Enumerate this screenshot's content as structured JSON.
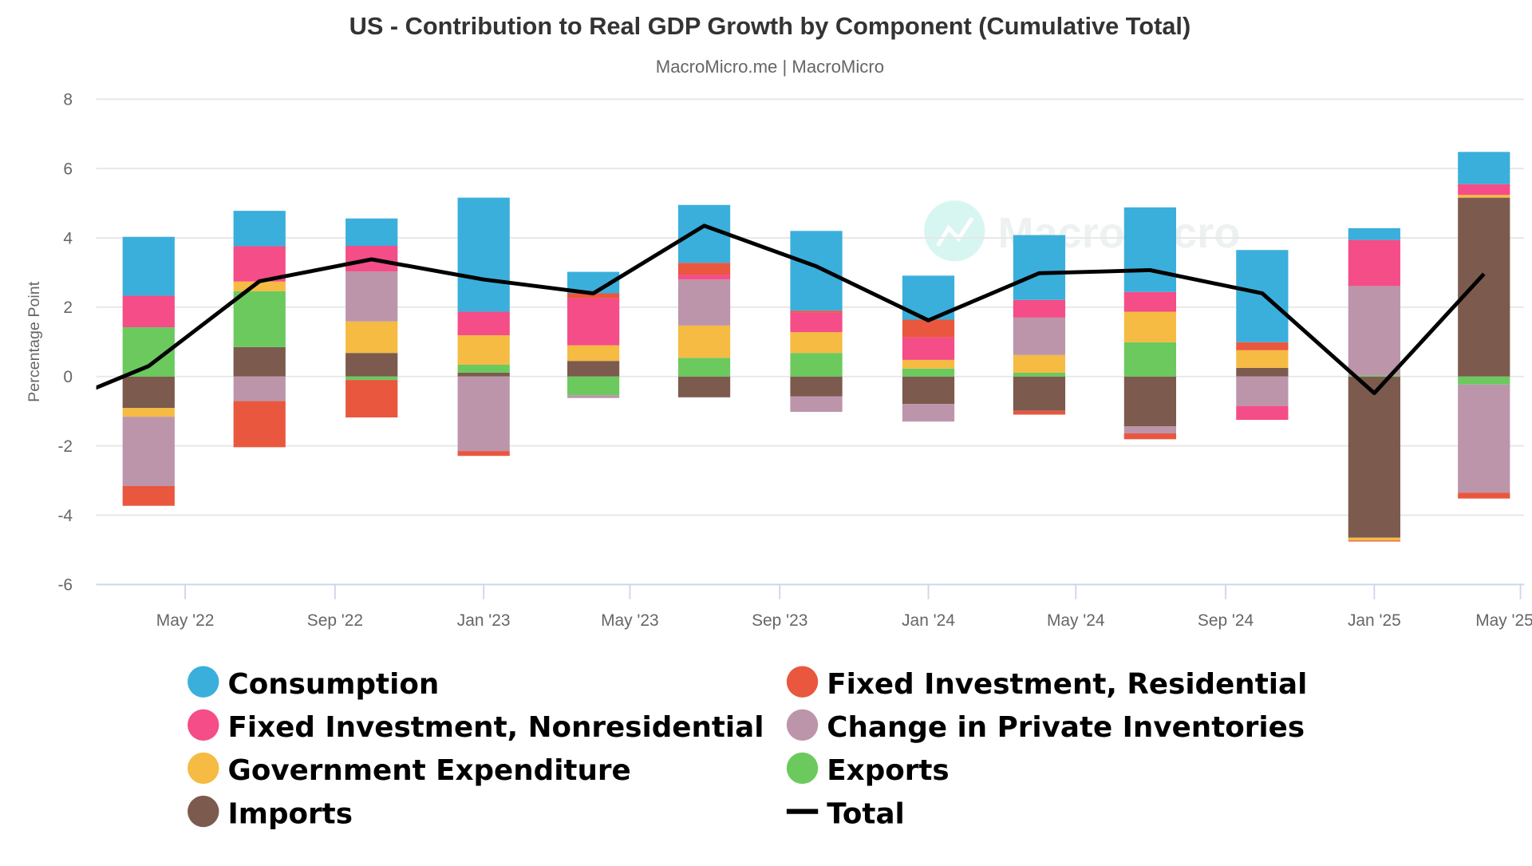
{
  "chart_data": {
    "type": "bar",
    "stacked": true,
    "title": "US - Contribution to Real GDP Growth by Component (Cumulative Total)",
    "subtitle": "MacroMicro.me | MacroMicro",
    "watermark": "MacroMicro",
    "ylabel": "Percentage Point",
    "ylim": [
      -6,
      8
    ],
    "yticks": [
      8,
      6,
      4,
      2,
      0,
      -2,
      -4,
      -6
    ],
    "xlim": [
      "2022-02-17",
      "2025-05-04"
    ],
    "xticks": [
      {
        "label": "May '22",
        "date": "2022-05-01"
      },
      {
        "label": "Sep '22",
        "date": "2022-09-01"
      },
      {
        "label": "Jan '23",
        "date": "2023-01-01"
      },
      {
        "label": "May '23",
        "date": "2023-05-01"
      },
      {
        "label": "Sep '23",
        "date": "2023-09-01"
      },
      {
        "label": "Jan '24",
        "date": "2024-01-01"
      },
      {
        "label": "May '24",
        "date": "2024-05-01"
      },
      {
        "label": "Sep '24",
        "date": "2024-09-01"
      },
      {
        "label": "Jan '25",
        "date": "2025-01-01"
      },
      {
        "label": "May '25",
        "date": "2025-05-01"
      }
    ],
    "grid": true,
    "legend_placement": "bottom",
    "x": [
      "2022-04-01",
      "2022-07-01",
      "2022-10-01",
      "2023-01-01",
      "2023-04-01",
      "2023-07-01",
      "2023-10-01",
      "2024-01-01",
      "2024-04-01",
      "2024-07-01",
      "2024-10-01",
      "2025-01-01",
      "2025-04-01"
    ],
    "series": [
      {
        "name": "Consumption",
        "color": "#3aafdb",
        "values": [
          1.7,
          1.02,
          0.79,
          3.29,
          0.62,
          1.67,
          2.3,
          1.27,
          1.87,
          2.44,
          2.66,
          0.34,
          0.93
        ]
      },
      {
        "name": "Fixed Investment, Residential",
        "color": "#e9573f",
        "values": [
          -0.57,
          -1.33,
          -1.08,
          -0.14,
          0.14,
          0.34,
          0.05,
          0.51,
          -0.11,
          -0.17,
          0.23,
          -0.03,
          -0.17
        ]
      },
      {
        "name": "Fixed Investment, Nonresidential",
        "color": "#f44d87",
        "values": [
          0.91,
          1.02,
          0.74,
          0.68,
          1.36,
          0.14,
          0.57,
          0.65,
          0.51,
          0.57,
          -0.4,
          1.33,
          0.31
        ]
      },
      {
        "name": "Change in Private Inventories",
        "color": "#bc95ab",
        "values": [
          -2.0,
          -0.71,
          1.44,
          -2.15,
          -0.08,
          1.33,
          -0.45,
          -0.51,
          1.08,
          -0.2,
          -0.85,
          2.58,
          -3.12
        ]
      },
      {
        "name": "Government Expenditure",
        "color": "#f5bb42",
        "values": [
          -0.25,
          0.28,
          0.91,
          0.85,
          0.45,
          0.93,
          0.6,
          0.25,
          0.51,
          0.88,
          0.51,
          -0.08,
          0.08
        ]
      },
      {
        "name": "Exports",
        "color": "#6cc95e",
        "values": [
          1.42,
          1.61,
          -0.1,
          0.23,
          -0.54,
          0.54,
          0.68,
          0.23,
          0.11,
          0.99,
          0.0,
          0.03,
          -0.23
        ]
      },
      {
        "name": "Imports",
        "color": "#7c5a4d",
        "values": [
          -0.91,
          0.85,
          0.68,
          0.11,
          0.45,
          -0.6,
          -0.57,
          -0.79,
          -0.99,
          -1.44,
          0.25,
          -4.65,
          5.16
        ]
      }
    ],
    "total": {
      "name": "Total",
      "type": "line",
      "color": "#000000",
      "x": [
        "2022-01-01",
        "2022-04-01",
        "2022-07-01",
        "2022-10-01",
        "2023-01-01",
        "2023-04-01",
        "2023-07-01",
        "2023-10-01",
        "2024-01-01",
        "2024-04-01",
        "2024-07-01",
        "2024-10-01",
        "2025-01-01",
        "2025-04-01"
      ],
      "values": [
        -1.0,
        0.3,
        2.75,
        3.38,
        2.8,
        2.4,
        4.35,
        3.18,
        1.62,
        2.98,
        3.07,
        2.4,
        -0.48,
        2.96
      ]
    }
  }
}
